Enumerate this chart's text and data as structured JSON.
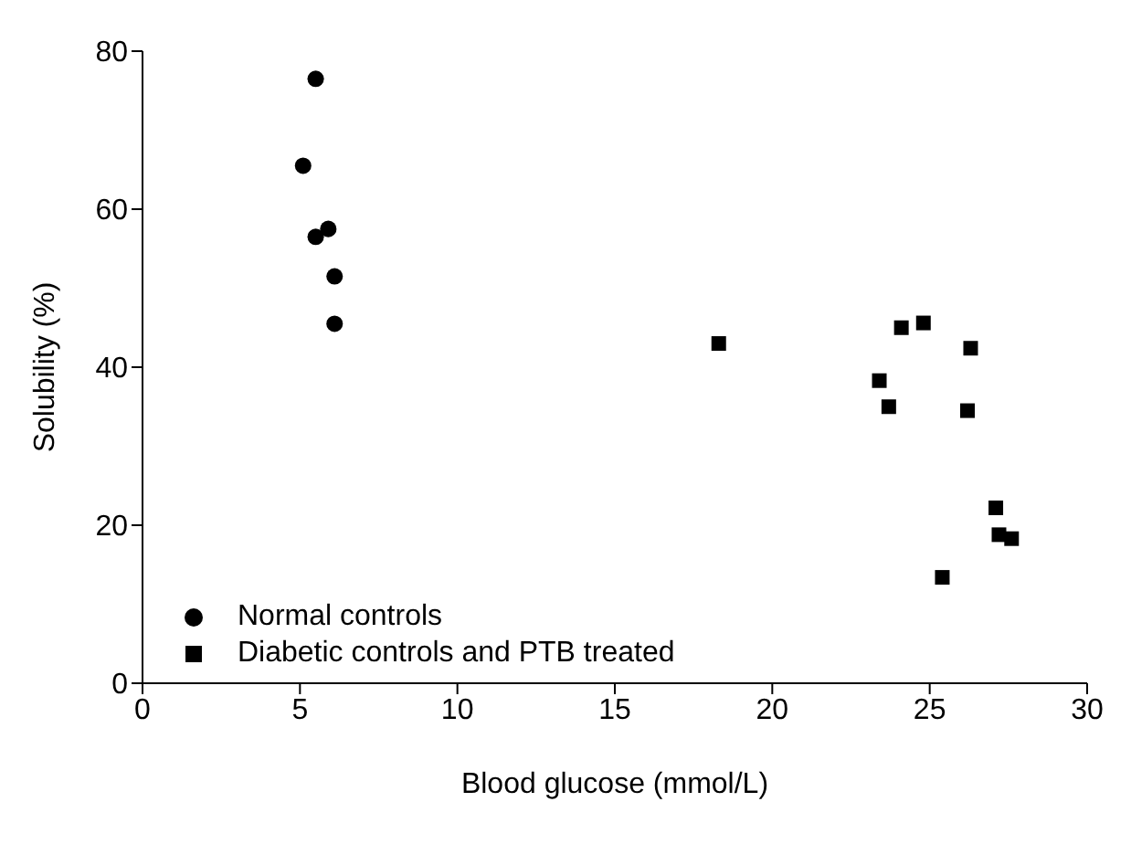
{
  "chart_data": {
    "type": "scatter",
    "xlabel": "Blood glucose (mmol/L)",
    "ylabel": "Solubility (%)",
    "xlim": [
      0,
      30
    ],
    "xticks": [
      0,
      5,
      10,
      15,
      20,
      25,
      30
    ],
    "ylim": [
      0,
      80
    ],
    "yticks": [
      0,
      20,
      40,
      60,
      80
    ],
    "grid": false,
    "legend": "bottom left",
    "series": [
      {
        "name": "Normal controls",
        "color": "#000000",
        "marker": "circle",
        "x": [
          5.5,
          5.1,
          5.5,
          5.9,
          6.1,
          6.1
        ],
        "values": [
          76.5,
          65.5,
          56.5,
          57.5,
          51.5,
          45.5
        ]
      },
      {
        "name": "Diabetic controls and PTB treated",
        "color": "#000000",
        "marker": "square",
        "x": [
          18.3,
          23.4,
          23.7,
          24.1,
          24.8,
          26.3,
          26.2,
          27.1,
          27.2,
          27.6,
          25.4
        ],
        "values": [
          43,
          38.3,
          35,
          45,
          45.6,
          42.4,
          34.5,
          22.2,
          18.8,
          18.3,
          13.4
        ]
      }
    ]
  }
}
